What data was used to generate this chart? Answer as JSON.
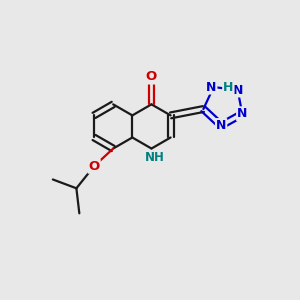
{
  "background_color": "#e8e8e8",
  "bond_color": "#1a1a1a",
  "N_color": "#0000cc",
  "O_color": "#cc0000",
  "NH_color": "#008080",
  "line_width": 1.6,
  "font_size": 8.5,
  "fig_size": [
    3.0,
    3.0
  ],
  "dpi": 100,
  "xlim": [
    0,
    10
  ],
  "ylim": [
    0,
    10
  ]
}
